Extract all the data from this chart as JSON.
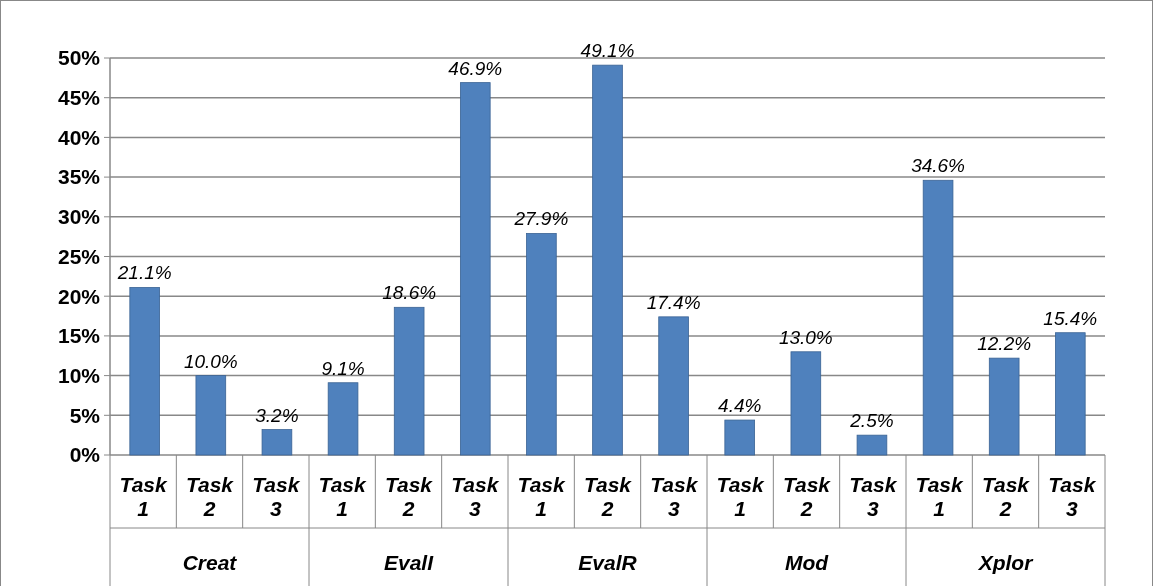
{
  "chart_data": {
    "type": "bar",
    "categories": [
      "Task 1",
      "Task 2",
      "Task 3",
      "Task 1",
      "Task 2",
      "Task 3",
      "Task 1",
      "Task 2",
      "Task 3",
      "Task 1",
      "Task 2",
      "Task 3",
      "Task 1",
      "Task 2",
      "Task 3"
    ],
    "values": [
      21.1,
      10.0,
      3.2,
      9.1,
      18.6,
      46.9,
      27.9,
      49.1,
      17.4,
      4.4,
      13.0,
      2.5,
      34.6,
      12.2,
      15.4
    ],
    "value_labels": [
      "21.1%",
      "10.0%",
      "3.2%",
      "9.1%",
      "18.6%",
      "46.9%",
      "27.9%",
      "49.1%",
      "17.4%",
      "4.4%",
      "13.0%",
      "2.5%",
      "34.6%",
      "12.2%",
      "15.4%"
    ],
    "color": "#4f81bd",
    "ylim": [
      0,
      50
    ],
    "yticks": [
      {
        "value": 0,
        "label": "0%"
      },
      {
        "value": 5,
        "label": "5%"
      },
      {
        "value": 10,
        "label": "10%"
      },
      {
        "value": 15,
        "label": "15%"
      },
      {
        "value": 20,
        "label": "20%"
      },
      {
        "value": 25,
        "label": "25%"
      },
      {
        "value": 30,
        "label": "30%"
      },
      {
        "value": 35,
        "label": "35%"
      },
      {
        "value": 40,
        "label": "40%"
      },
      {
        "value": 45,
        "label": "45%"
      },
      {
        "value": 50,
        "label": "50%"
      }
    ],
    "grid": "y",
    "annotations": [
      "Creat",
      "EvalI",
      "EvalR",
      "Mod",
      "Xplor"
    ]
  }
}
